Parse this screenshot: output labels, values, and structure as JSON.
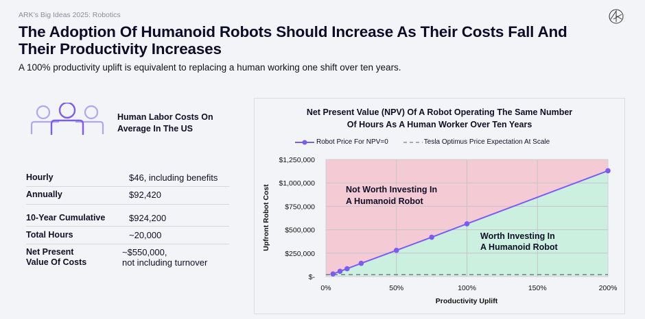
{
  "header": {
    "kicker": "ARK’s Big Ideas 2025: Robotics",
    "title": "The Adoption Of Humanoid Robots Should Increase As Their Costs Fall And Their Productivity Increases",
    "subtitle": "A 100% productivity uplift is equivalent to replacing a human working one shift over ten years.",
    "logo_icon": "ark-logo-icon"
  },
  "labor": {
    "icon": "people-group-icon",
    "heading_line1": "Human Labor Costs On",
    "heading_line2": "Average In The US",
    "rows": [
      {
        "label": "Hourly",
        "value": "$46, including benefits"
      },
      {
        "label": "Annually",
        "value": "$92,420"
      },
      {
        "label": "10-Year Cumulative",
        "value": "$924,200"
      },
      {
        "label": "Total Hours",
        "value": "~20,000"
      },
      {
        "label_line1": "Net Present",
        "label_line2": "Value Of Costs",
        "value_line1": "~$550,000,",
        "value_line2": "not including turnover"
      }
    ]
  },
  "colors": {
    "line": "#7b5cf0",
    "above_region": "#f4cad4",
    "below_region": "#ccf0e0",
    "grid": "#c4c4c8",
    "dashed": "#7a7a80",
    "icon_dark": "#7b5cf0",
    "icon_light": "#b3a3f5"
  },
  "chart_data": {
    "type": "line",
    "title_line1": "Net Present Value (NPV) Of A Robot Operating The Same Number",
    "title_line2": "Of Hours As A Human Worker Over Ten Years",
    "xlabel": "Productivity Uplift",
    "ylabel": "Upfront Robot Cost",
    "xlim": [
      0,
      200
    ],
    "ylim": [
      0,
      1250000
    ],
    "x_ticks": [
      0,
      50,
      100,
      150,
      200
    ],
    "x_tick_labels": [
      "0%",
      "50%",
      "100%",
      "150%",
      "200%"
    ],
    "y_ticks": [
      0,
      250000,
      500000,
      750000,
      1000000,
      1250000
    ],
    "y_tick_labels": [
      "$-",
      "$250,000",
      "$500,000",
      "$750,000",
      "$1,000,000",
      "$1,250,000"
    ],
    "grid": true,
    "legend_position": "top",
    "series": [
      {
        "name": "Robot Price For NPV=0",
        "style": "line-with-markers",
        "x": [
          5,
          10,
          15,
          25,
          50,
          75,
          100,
          200
        ],
        "y": [
          28000,
          56000,
          84000,
          141000,
          280000,
          420000,
          563000,
          1130000
        ]
      },
      {
        "name": "Tesla Optimus Price Expectation At Scale",
        "style": "dashed",
        "x": [
          0,
          200
        ],
        "y": [
          20000,
          20000
        ]
      }
    ],
    "annotations": [
      {
        "text_line1": "Not Worth Investing In",
        "text_line2": "A Humanoid Robot",
        "region": "above-line"
      },
      {
        "text_line1": "Worth Investing In",
        "text_line2": "A Humanoid Robot",
        "region": "below-line"
      }
    ]
  }
}
